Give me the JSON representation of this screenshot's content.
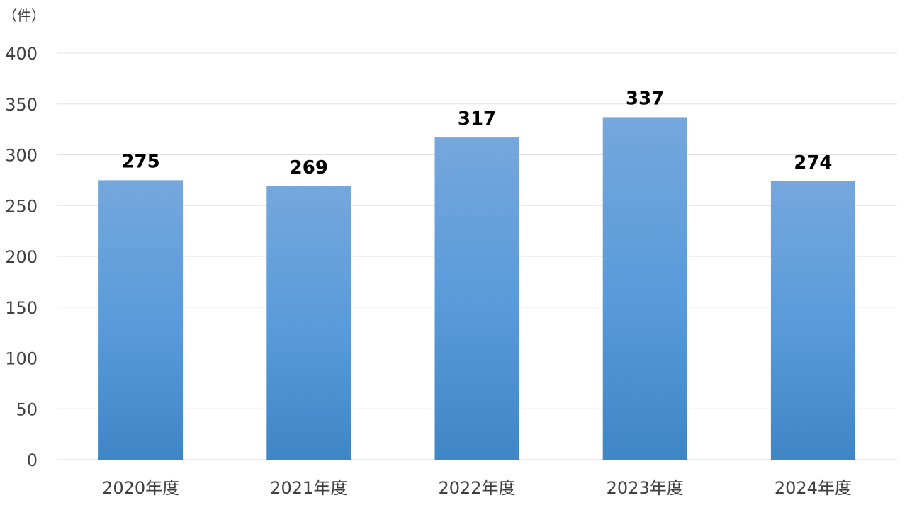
{
  "chart_data": {
    "type": "bar",
    "unit_label": "（件）",
    "categories": [
      "2020年度",
      "2021年度",
      "2022年度",
      "2023年度",
      "2024年度"
    ],
    "series": [
      {
        "values": [
          275,
          269,
          317,
          337,
          274
        ]
      }
    ],
    "ylim": [
      0,
      400
    ],
    "yticks": [
      0,
      50,
      100,
      150,
      200,
      250,
      300,
      350,
      400
    ],
    "grid": true,
    "colors": {
      "bar_top": "#75a7dc",
      "bar_mid": "#5a9bdb",
      "bar_bottom": "#3f86c6",
      "grid": "#e0e0e0",
      "axis": "#d0d0d0"
    }
  }
}
